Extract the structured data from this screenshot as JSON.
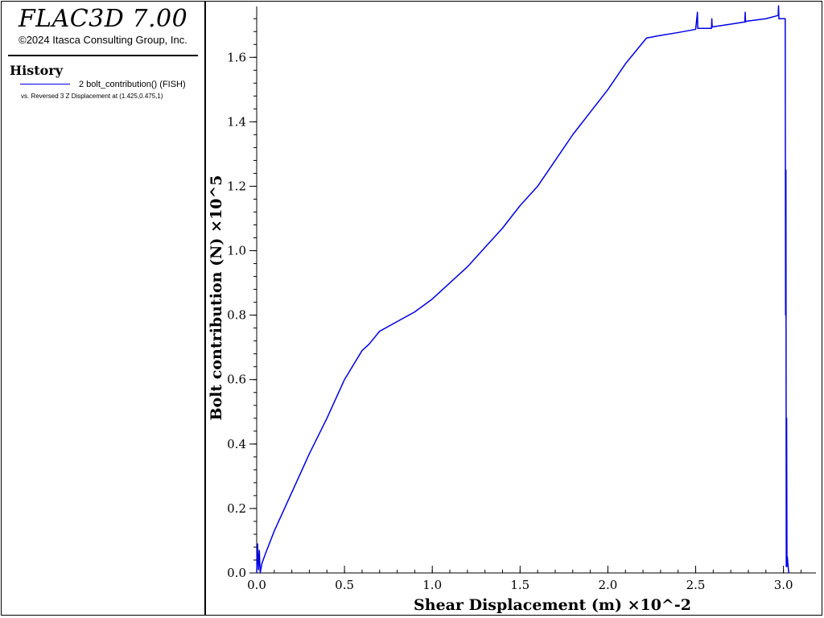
{
  "app": {
    "title": "FLAC3D 7.00",
    "copyright": "©2024 Itasca Consulting Group, Inc."
  },
  "legend": {
    "heading": "History",
    "items": [
      {
        "label": "2 bolt_contribution() (FISH)",
        "vs_label": "vs. Reversed 3 Z Displacement at (1.425,0.475,1)",
        "color": "#0000e6"
      }
    ]
  },
  "chart_data": {
    "type": "line",
    "xlabel": "Shear Displacement (m) ×10^-2",
    "ylabel": "Bolt contribution (N) ×10^5",
    "xlim": [
      0,
      3.185
    ],
    "ylim": [
      0,
      1.758
    ],
    "xticks": [
      0.0,
      0.5,
      1.0,
      1.5,
      2.0,
      2.5,
      3.0
    ],
    "xtick_labels": [
      "0.0",
      "0.5",
      "1.0",
      "1.5",
      "2.0",
      "2.5",
      "3.0"
    ],
    "yticks": [
      0.0,
      0.2,
      0.4,
      0.6,
      0.8,
      1.0,
      1.2,
      1.4,
      1.6
    ],
    "ytick_labels": [
      "0.0",
      "0.2",
      "0.4",
      "0.6",
      "0.8",
      "1.0",
      "1.2",
      "1.4",
      "1.6"
    ],
    "grid": false,
    "legend_position": "left panel",
    "series": [
      {
        "color": "#0000e6",
        "x": [
          0.0,
          0.005,
          0.01,
          0.015,
          0.02,
          0.03,
          0.05,
          0.1,
          0.2,
          0.3,
          0.4,
          0.5,
          0.6,
          0.64,
          0.7,
          0.8,
          0.9,
          1.0,
          1.1,
          1.2,
          1.3,
          1.4,
          1.5,
          1.6,
          1.7,
          1.8,
          1.9,
          2.0,
          2.1,
          2.22,
          2.3,
          2.4,
          2.5,
          2.51,
          2.512,
          2.514,
          2.52,
          2.59,
          2.592,
          2.594,
          2.6,
          2.7,
          2.78,
          2.782,
          2.784,
          2.79,
          2.9,
          2.97,
          2.972,
          2.974,
          2.98,
          3.01,
          3.012,
          3.014,
          3.016,
          3.018,
          3.02,
          3.022,
          3.025,
          3.03
        ],
        "y": [
          0.0,
          0.09,
          0.01,
          0.07,
          0.0,
          0.03,
          0.06,
          0.13,
          0.25,
          0.37,
          0.48,
          0.6,
          0.69,
          0.71,
          0.75,
          0.78,
          0.81,
          0.85,
          0.9,
          0.95,
          1.01,
          1.07,
          1.14,
          1.2,
          1.28,
          1.36,
          1.43,
          1.5,
          1.58,
          1.66,
          1.668,
          1.677,
          1.687,
          1.74,
          1.69,
          1.69,
          1.69,
          1.69,
          1.72,
          1.694,
          1.695,
          1.703,
          1.71,
          1.74,
          1.71,
          1.712,
          1.72,
          1.73,
          1.76,
          1.72,
          1.72,
          1.72,
          0.8,
          1.25,
          0.02,
          0.48,
          0.02,
          0.05,
          0.03,
          0.0
        ]
      }
    ]
  }
}
